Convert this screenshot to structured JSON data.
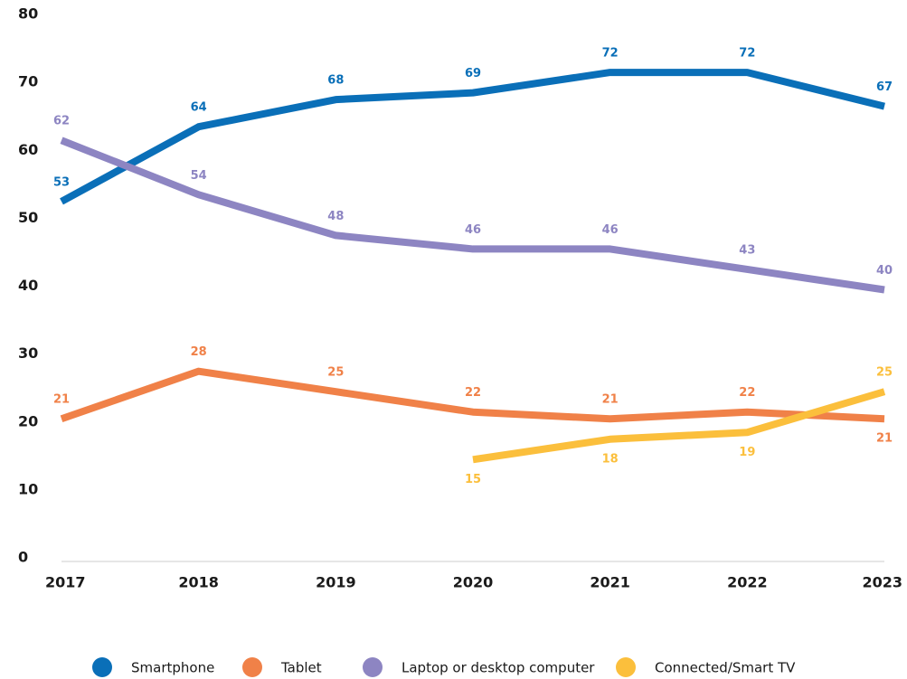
{
  "chart_data": {
    "type": "line",
    "categories": [
      "2017",
      "2018",
      "2019",
      "2020",
      "2021",
      "2022",
      "2023"
    ],
    "series": [
      {
        "name": "Smartphone",
        "color": "#0a6fb8",
        "values": [
          53,
          64,
          68,
          69,
          72,
          72,
          67
        ]
      },
      {
        "name": "Tablet",
        "color": "#f08148",
        "values": [
          21,
          28,
          25,
          22,
          21,
          22,
          21
        ]
      },
      {
        "name": "Laptop or desktop computer",
        "color": "#8d85c2",
        "values": [
          62,
          54,
          48,
          46,
          46,
          43,
          40
        ]
      },
      {
        "name": "Connected/Smart TV",
        "color": "#fbbf3c",
        "values": [
          null,
          null,
          null,
          15,
          18,
          19,
          25
        ]
      }
    ],
    "ylim": [
      0,
      80
    ],
    "yticks": [
      0,
      10,
      20,
      30,
      40,
      50,
      60,
      70,
      80
    ],
    "grid": false,
    "legend": "bottom"
  }
}
